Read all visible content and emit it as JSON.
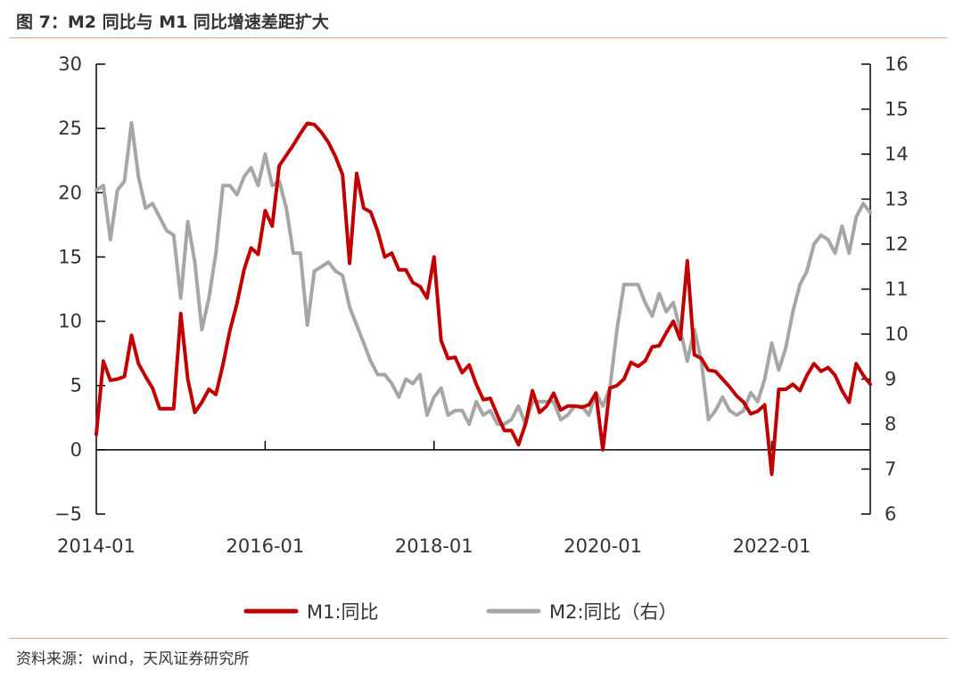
{
  "title": "图 7：M2 同比与 M1 同比增速差距扩大",
  "source": "资料来源：wind，天风证券研究所",
  "chart_data": {
    "type": "line",
    "title": "M2 同比与 M1 同比增速差距扩大",
    "x_start": "2014-01",
    "x_tick_labels": [
      "2014-01",
      "2016-01",
      "2018-01",
      "2020-01",
      "2022-01"
    ],
    "y_left": {
      "ylim": [
        -5,
        30
      ],
      "ticks": [
        -5,
        0,
        5,
        10,
        15,
        20,
        25,
        30
      ],
      "tick_labels": [
        "−5",
        "0",
        "5",
        "10",
        "15",
        "20",
        "25",
        "30"
      ]
    },
    "y_right": {
      "ylim": [
        6,
        16
      ],
      "ticks": [
        6,
        7,
        8,
        9,
        10,
        11,
        12,
        13,
        14,
        15,
        16
      ],
      "tick_labels": [
        "6",
        "7",
        "8",
        "9",
        "10",
        "11",
        "12",
        "13",
        "14",
        "15",
        "16"
      ]
    },
    "legend_position": "bottom",
    "series": [
      {
        "name": "M1:同比",
        "axis": "left",
        "color": "#c00000",
        "values": [
          1.2,
          6.9,
          5.4,
          5.5,
          5.7,
          8.9,
          6.7,
          5.7,
          4.8,
          3.2,
          3.2,
          3.2,
          10.6,
          5.5,
          2.9,
          3.7,
          4.7,
          4.3,
          6.6,
          9.3,
          11.4,
          14.0,
          15.7,
          15.2,
          18.6,
          17.4,
          22.1,
          22.9,
          23.7,
          24.6,
          25.4,
          25.3,
          24.7,
          23.9,
          22.8,
          21.4,
          14.5,
          21.5,
          18.8,
          18.5,
          17.0,
          15.0,
          15.3,
          14.0,
          14.0,
          13.0,
          12.7,
          11.8,
          15.0,
          8.5,
          7.1,
          7.2,
          6.0,
          6.6,
          5.1,
          3.9,
          4.0,
          2.7,
          1.5,
          1.5,
          0.4,
          2.0,
          4.6,
          2.9,
          3.4,
          4.4,
          3.1,
          3.4,
          3.4,
          3.3,
          3.5,
          4.4,
          0.0,
          4.8,
          5.0,
          5.5,
          6.8,
          6.5,
          6.9,
          8.0,
          8.1,
          9.1,
          10.0,
          8.6,
          14.7,
          7.4,
          7.1,
          6.2,
          6.1,
          5.5,
          4.9,
          4.2,
          3.7,
          2.8,
          3.0,
          3.5,
          -1.9,
          4.7,
          4.7,
          5.1,
          4.6,
          5.8,
          6.7,
          6.1,
          6.4,
          5.8,
          4.6,
          3.7,
          6.7,
          5.8,
          5.1
        ]
      },
      {
        "name": "M2:同比（右）",
        "axis": "right",
        "color": "#a6a6a6",
        "values": [
          13.2,
          13.3,
          12.1,
          13.2,
          13.4,
          14.7,
          13.5,
          12.8,
          12.9,
          12.6,
          12.3,
          12.2,
          10.8,
          12.5,
          11.6,
          10.1,
          10.8,
          11.8,
          13.3,
          13.3,
          13.1,
          13.5,
          13.7,
          13.3,
          14.0,
          13.3,
          13.4,
          12.8,
          11.8,
          11.8,
          10.2,
          11.4,
          11.5,
          11.6,
          11.4,
          11.3,
          10.6,
          10.2,
          9.8,
          9.4,
          9.1,
          9.1,
          8.9,
          8.6,
          9.0,
          8.9,
          9.1,
          8.2,
          8.6,
          8.8,
          8.2,
          8.3,
          8.3,
          8.0,
          8.5,
          8.2,
          8.3,
          8.0,
          8.0,
          8.1,
          8.4,
          8.0,
          8.5,
          8.5,
          8.5,
          8.5,
          8.1,
          8.2,
          8.4,
          8.4,
          8.2,
          8.7,
          8.4,
          8.8,
          10.1,
          11.1,
          11.1,
          11.1,
          10.7,
          10.4,
          10.9,
          10.5,
          10.7,
          10.1,
          9.4,
          10.1,
          9.4,
          8.1,
          8.3,
          8.6,
          8.3,
          8.2,
          8.3,
          8.7,
          8.5,
          9.0,
          9.8,
          9.2,
          9.7,
          10.5,
          11.1,
          11.4,
          12.0,
          12.2,
          12.1,
          11.8,
          12.4,
          11.8,
          12.6,
          12.9,
          12.7
        ]
      }
    ]
  }
}
